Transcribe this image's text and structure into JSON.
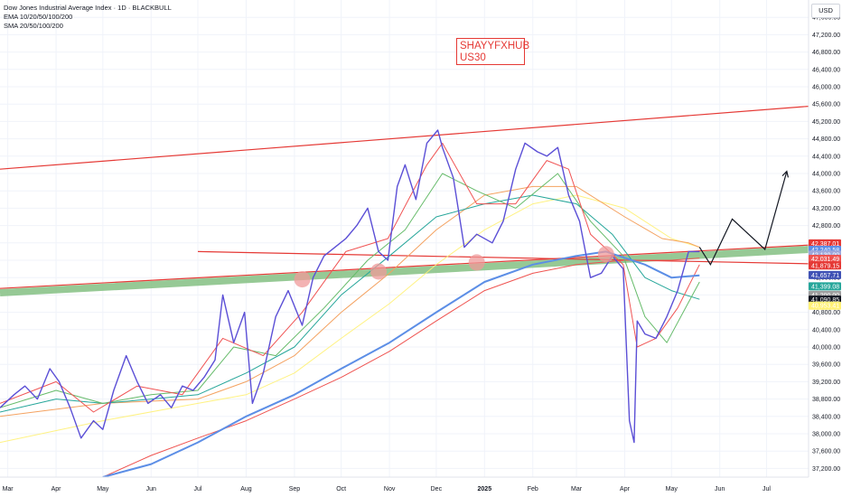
{
  "legend": {
    "title": "Dow Jones Industrial Average Index · 1D · BLACKBULL",
    "ema": "EMA 10/20/50/100/200",
    "sma": "SMA 20/50/100/200"
  },
  "currency": "USD",
  "watermark": {
    "line1": "SHAYYFXHUB",
    "line2": "US30"
  },
  "colors": {
    "price": "#5b4fd6",
    "ema10": "#f05454",
    "ema20": "#66bb6a",
    "ema50": "#26a69a",
    "sma50": "#f4a261",
    "sma100": "#fff176",
    "sma200": "#ef5350",
    "ema200": "#5c8ee6",
    "trend_red": "#e53935",
    "support_band": "#8bc48a",
    "projection": "#131722"
  },
  "chart_data": {
    "type": "line",
    "title": "Dow Jones Industrial Average Index · 1D · BLACKBULL",
    "xlabel": "",
    "ylabel": "",
    "ylim": [
      37000,
      48000
    ],
    "xlim": [
      "2024-02-25",
      "2025-07-28"
    ],
    "grid": true,
    "legend_placement": "top-left",
    "y_ticks": [
      37200,
      37600,
      38000,
      38400,
      38800,
      39200,
      39600,
      40000,
      40400,
      40800,
      41200,
      41600,
      42000,
      42400,
      42800,
      43200,
      43600,
      44000,
      44400,
      44800,
      45200,
      45600,
      46000,
      46400,
      46800,
      47200,
      47600
    ],
    "y_tick_labels": [
      "37,200.00",
      "37,600.00",
      "38,000.00",
      "38,400.00",
      "38,800.00",
      "39,200.00",
      "39,600.00",
      "40,000.00",
      "40,400.00",
      "40,800.00",
      "41,200.00",
      "41,600.00",
      "42,000.00",
      "42,400.00",
      "42,800.00",
      "43,200.00",
      "43,600.00",
      "44,000.00",
      "44,400.00",
      "44,800.00",
      "45,200.00",
      "45,600.00",
      "46,000.00",
      "46,400.00",
      "46,800.00",
      "47,200.00",
      "47,600.00"
    ],
    "x_ticks": [
      {
        "label": "Mar",
        "date": "2024-03-01"
      },
      {
        "label": "Apr",
        "date": "2024-04-01"
      },
      {
        "label": "May",
        "date": "2024-05-01"
      },
      {
        "label": "Jun",
        "date": "2024-06-01"
      },
      {
        "label": "Jul",
        "date": "2024-07-01"
      },
      {
        "label": "Aug",
        "date": "2024-08-01"
      },
      {
        "label": "Sep",
        "date": "2024-09-01"
      },
      {
        "label": "Oct",
        "date": "2024-10-01"
      },
      {
        "label": "Nov",
        "date": "2024-11-01"
      },
      {
        "label": "Dec",
        "date": "2024-12-01"
      },
      {
        "label": "2025",
        "date": "2025-01-01"
      },
      {
        "label": "Feb",
        "date": "2025-02-01"
      },
      {
        "label": "Mar",
        "date": "2025-03-01"
      },
      {
        "label": "Apr",
        "date": "2025-04-01"
      },
      {
        "label": "May",
        "date": "2025-05-01"
      },
      {
        "label": "Jun",
        "date": "2025-06-01"
      },
      {
        "label": "Jul",
        "date": "2025-07-01"
      }
    ],
    "series": [
      {
        "key": "price",
        "x": [
          "2024-02-25",
          "2024-03-05",
          "2024-03-12",
          "2024-03-20",
          "2024-03-28",
          "2024-04-03",
          "2024-04-10",
          "2024-04-17",
          "2024-04-25",
          "2024-05-01",
          "2024-05-08",
          "2024-05-16",
          "2024-05-23",
          "2024-05-30",
          "2024-06-07",
          "2024-06-14",
          "2024-06-21",
          "2024-06-28",
          "2024-07-05",
          "2024-07-12",
          "2024-07-17",
          "2024-07-24",
          "2024-07-31",
          "2024-08-05",
          "2024-08-12",
          "2024-08-20",
          "2024-08-28",
          "2024-09-06",
          "2024-09-13",
          "2024-09-20",
          "2024-09-27",
          "2024-10-04",
          "2024-10-11",
          "2024-10-18",
          "2024-10-25",
          "2024-10-31",
          "2024-11-06",
          "2024-11-11",
          "2024-11-18",
          "2024-11-25",
          "2024-12-02",
          "2024-12-05",
          "2024-12-12",
          "2024-12-19",
          "2024-12-27",
          "2025-01-06",
          "2025-01-13",
          "2025-01-21",
          "2025-01-27",
          "2025-02-04",
          "2025-02-10",
          "2025-02-17",
          "2025-02-24",
          "2025-03-03",
          "2025-03-10",
          "2025-03-17",
          "2025-03-24",
          "2025-03-31",
          "2025-04-04",
          "2025-04-07",
          "2025-04-09",
          "2025-04-14",
          "2025-04-21",
          "2025-04-28",
          "2025-05-05",
          "2025-05-12",
          "2025-05-19"
        ],
        "y": [
          38600,
          38900,
          39100,
          38800,
          39500,
          39200,
          38600,
          37900,
          38300,
          38100,
          39000,
          39800,
          39200,
          38700,
          38900,
          38600,
          39100,
          39000,
          39300,
          39700,
          41200,
          40100,
          40800,
          38700,
          39400,
          40700,
          41300,
          40500,
          41600,
          42100,
          42300,
          42500,
          42800,
          43200,
          42200,
          42000,
          43700,
          44200,
          43400,
          44700,
          45000,
          44600,
          43900,
          42300,
          42600,
          42400,
          42900,
          44100,
          44700,
          44500,
          44400,
          44600,
          43500,
          42900,
          41600,
          41700,
          42100,
          41800,
          38300,
          37800,
          40600,
          40300,
          40200,
          40700,
          41300,
          42200,
          42200
        ]
      },
      {
        "key": "ema10",
        "x": [
          "2024-02-25",
          "2024-04-01",
          "2024-04-25",
          "2024-05-23",
          "2024-06-21",
          "2024-07-17",
          "2024-08-12",
          "2024-09-06",
          "2024-10-04",
          "2024-10-31",
          "2024-11-25",
          "2024-12-05",
          "2024-12-27",
          "2025-01-21",
          "2025-02-10",
          "2025-02-24",
          "2025-03-10",
          "2025-03-31",
          "2025-04-09",
          "2025-04-21",
          "2025-05-05",
          "2025-05-19"
        ],
        "y": [
          38700,
          39200,
          38500,
          39100,
          38900,
          40200,
          39800,
          40800,
          42200,
          42500,
          44200,
          44700,
          43300,
          43300,
          44300,
          44100,
          42600,
          41900,
          40000,
          40200,
          40900,
          41900
        ]
      },
      {
        "key": "ema20",
        "x": [
          "2024-02-25",
          "2024-04-01",
          "2024-05-01",
          "2024-06-01",
          "2024-07-01",
          "2024-07-24",
          "2024-08-20",
          "2024-09-20",
          "2024-10-18",
          "2024-11-11",
          "2024-12-05",
          "2024-12-27",
          "2025-01-21",
          "2025-02-17",
          "2025-03-10",
          "2025-03-31",
          "2025-04-14",
          "2025-04-28",
          "2025-05-19"
        ],
        "y": [
          38600,
          39000,
          38700,
          38900,
          39000,
          40000,
          39800,
          40900,
          42000,
          42700,
          44000,
          43600,
          43200,
          44000,
          42900,
          42100,
          40700,
          40100,
          41500
        ]
      },
      {
        "key": "ema50",
        "x": [
          "2024-02-25",
          "2024-04-01",
          "2024-05-01",
          "2024-06-01",
          "2024-07-01",
          "2024-08-01",
          "2024-09-01",
          "2024-10-01",
          "2024-11-01",
          "2024-12-01",
          "2025-01-01",
          "2025-02-01",
          "2025-03-01",
          "2025-03-24",
          "2025-04-14",
          "2025-05-01",
          "2025-05-19"
        ],
        "y": [
          38500,
          38800,
          38700,
          38800,
          38900,
          39400,
          40000,
          41200,
          42100,
          43000,
          43300,
          43500,
          43300,
          42600,
          41600,
          41300,
          41100
        ]
      },
      {
        "key": "sma50",
        "x": [
          "2024-02-25",
          "2024-05-01",
          "2024-07-01",
          "2024-08-01",
          "2024-09-01",
          "2024-10-01",
          "2024-11-01",
          "2024-12-01",
          "2025-01-01",
          "2025-02-01",
          "2025-03-01",
          "2025-04-01",
          "2025-04-25",
          "2025-05-12",
          "2025-05-19"
        ],
        "y": [
          38400,
          38700,
          38800,
          39200,
          39800,
          40800,
          41700,
          42700,
          43500,
          43700,
          43700,
          43000,
          42500,
          42400,
          42300
        ]
      },
      {
        "key": "sma100",
        "x": [
          "2024-02-25",
          "2024-05-01",
          "2024-07-01",
          "2024-08-01",
          "2024-09-01",
          "2024-10-01",
          "2024-11-01",
          "2024-12-01",
          "2025-01-01",
          "2025-02-01",
          "2025-03-01",
          "2025-04-01",
          "2025-05-01",
          "2025-05-19"
        ],
        "y": [
          37800,
          38300,
          38700,
          38900,
          39400,
          40200,
          41000,
          41900,
          42700,
          43300,
          43500,
          43200,
          42500,
          42300
        ]
      },
      {
        "key": "sma200",
        "x": [
          "2024-05-01",
          "2024-06-01",
          "2024-07-01",
          "2024-08-01",
          "2024-09-01",
          "2024-10-01",
          "2024-11-01",
          "2024-12-01",
          "2025-01-01",
          "2025-02-01",
          "2025-03-01",
          "2025-04-01",
          "2025-05-01",
          "2025-05-19"
        ],
        "y": [
          37000,
          37500,
          37900,
          38300,
          38800,
          39300,
          39900,
          40600,
          41300,
          41700,
          41900,
          42000,
          42000,
          42050
        ]
      },
      {
        "key": "ema200",
        "x": [
          "2024-05-01",
          "2024-06-01",
          "2024-07-01",
          "2024-08-01",
          "2024-09-01",
          "2024-10-01",
          "2024-11-01",
          "2024-12-01",
          "2025-01-01",
          "2025-02-01",
          "2025-03-01",
          "2025-03-20",
          "2025-04-14",
          "2025-05-01",
          "2025-05-19"
        ],
        "y": [
          37000,
          37300,
          37800,
          38400,
          38900,
          39500,
          40100,
          40800,
          41500,
          41900,
          42100,
          42200,
          41900,
          41600,
          41650
        ]
      }
    ],
    "trendlines": [
      {
        "key": "upper_channel",
        "style": "red",
        "points": [
          {
            "x": "2024-02-25",
            "y": 44100
          },
          {
            "x": "2025-07-28",
            "y": 45550
          }
        ]
      },
      {
        "key": "horizontal_resistance",
        "style": "red",
        "points": [
          {
            "x": "2024-07-01",
            "y": 42200
          },
          {
            "x": "2025-07-28",
            "y": 41920
          }
        ]
      },
      {
        "key": "lower_trendline",
        "style": "red",
        "points": [
          {
            "x": "2024-02-25",
            "y": 41350
          },
          {
            "x": "2025-07-28",
            "y": 42350
          }
        ]
      },
      {
        "key": "support_band",
        "style": "band",
        "points": [
          {
            "x": "2024-02-25",
            "y": 41250
          },
          {
            "x": "2025-07-28",
            "y": 42250
          }
        ]
      }
    ],
    "touch_points": [
      {
        "x": "2024-09-06",
        "y": 41560
      },
      {
        "x": "2024-10-25",
        "y": 41740
      },
      {
        "x": "2024-12-27",
        "y": 41950
      },
      {
        "x": "2025-03-20",
        "y": 42140
      }
    ],
    "projection": {
      "x": [
        "2025-05-19",
        "2025-05-26",
        "2025-06-09",
        "2025-06-30",
        "2025-07-14"
      ],
      "y": [
        42300,
        41900,
        42950,
        42250,
        44050
      ]
    },
    "price_tags": [
      {
        "value": 42387.01,
        "label": "42,387.01",
        "color": "#e53935"
      },
      {
        "value": 42240.58,
        "label": "42,240.58",
        "color": "#5c8ee6"
      },
      {
        "value": 42130.0,
        "label": "42,130.00",
        "color": "#9fa8da"
      },
      {
        "value": 42031.49,
        "label": "42,031.49",
        "color": "#ef5350"
      },
      {
        "value": 41879.15,
        "label": "41,879.15",
        "color": "#e53935"
      },
      {
        "value": 41657.71,
        "label": "41,657.71",
        "color": "#3f51b5"
      },
      {
        "value": 41399.08,
        "label": "41,399.08",
        "color": "#26a69a"
      },
      {
        "value": 41200.0,
        "label": "41,200.00",
        "color": "#9e9e9e"
      },
      {
        "value": 41090.85,
        "label": "41,090.85",
        "color": "#131722"
      },
      {
        "value": 40953.41,
        "label": "40,953.41",
        "color": "#fff176"
      }
    ]
  }
}
